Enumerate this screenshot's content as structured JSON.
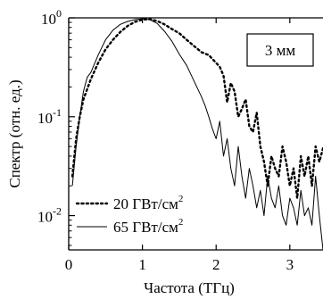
{
  "chart_data": {
    "type": "line",
    "xlabel": "Частота (ТГц)",
    "ylabel": "Спектр (отн. ед.)",
    "xlim": [
      0,
      3.45
    ],
    "ylim": [
      0.0045,
      1.0
    ],
    "yscale": "log",
    "x_ticks": [
      0,
      1,
      2,
      3
    ],
    "y_ticks": [
      {
        "value": 1,
        "base": "10",
        "exp": "0"
      },
      {
        "value": 0.1,
        "base": "10",
        "exp": "-1"
      },
      {
        "value": 0.01,
        "base": "10",
        "exp": "-2"
      }
    ],
    "annotation": "3 мм",
    "legend": {
      "position": "bottom-left"
    },
    "series": [
      {
        "name": "20 ГВт/см",
        "name_sup": "2",
        "style": "dotted",
        "color": "#000000",
        "x": [
          0.05,
          0.1,
          0.15,
          0.2,
          0.3,
          0.4,
          0.5,
          0.6,
          0.7,
          0.8,
          0.9,
          1.0,
          1.1,
          1.2,
          1.3,
          1.4,
          1.5,
          1.6,
          1.7,
          1.8,
          1.9,
          2.0,
          2.05,
          2.1,
          2.15,
          2.2,
          2.25,
          2.3,
          2.35,
          2.4,
          2.45,
          2.5,
          2.55,
          2.6,
          2.65,
          2.7,
          2.75,
          2.8,
          2.85,
          2.9,
          2.95,
          3.0,
          3.05,
          3.1,
          3.15,
          3.2,
          3.25,
          3.3,
          3.35,
          3.4,
          3.45
        ],
        "y": [
          0.025,
          0.06,
          0.1,
          0.15,
          0.24,
          0.35,
          0.48,
          0.6,
          0.72,
          0.83,
          0.91,
          0.96,
          0.97,
          0.93,
          0.86,
          0.77,
          0.7,
          0.6,
          0.52,
          0.45,
          0.42,
          0.35,
          0.32,
          0.26,
          0.14,
          0.22,
          0.18,
          0.1,
          0.12,
          0.15,
          0.08,
          0.07,
          0.11,
          0.05,
          0.035,
          0.02,
          0.04,
          0.03,
          0.025,
          0.05,
          0.035,
          0.02,
          0.03,
          0.015,
          0.04,
          0.025,
          0.04,
          0.02,
          0.05,
          0.035,
          0.048
        ]
      },
      {
        "name": "65 ГВт/см",
        "name_sup": "2",
        "style": "solid",
        "color": "#000000",
        "x": [
          0.05,
          0.1,
          0.15,
          0.2,
          0.25,
          0.3,
          0.4,
          0.5,
          0.6,
          0.7,
          0.8,
          0.9,
          1.0,
          1.1,
          1.2,
          1.3,
          1.4,
          1.5,
          1.6,
          1.7,
          1.8,
          1.85,
          1.9,
          1.95,
          2.0,
          2.05,
          2.1,
          2.15,
          2.2,
          2.25,
          2.3,
          2.35,
          2.4,
          2.45,
          2.5,
          2.55,
          2.6,
          2.65,
          2.7,
          2.75,
          2.8,
          2.85,
          2.9,
          2.95,
          3.0,
          3.05,
          3.1,
          3.15,
          3.2,
          3.25,
          3.3,
          3.35,
          3.4,
          3.45
        ],
        "y": [
          0.02,
          0.05,
          0.1,
          0.18,
          0.25,
          0.28,
          0.42,
          0.6,
          0.75,
          0.86,
          0.92,
          0.96,
          0.98,
          0.96,
          0.88,
          0.73,
          0.58,
          0.43,
          0.33,
          0.23,
          0.16,
          0.13,
          0.1,
          0.075,
          0.06,
          0.09,
          0.04,
          0.06,
          0.03,
          0.02,
          0.05,
          0.025,
          0.015,
          0.03,
          0.02,
          0.012,
          0.018,
          0.01,
          0.025,
          0.015,
          0.012,
          0.02,
          0.01,
          0.008,
          0.015,
          0.012,
          0.008,
          0.018,
          0.01,
          0.012,
          0.008,
          0.025,
          0.01,
          0.0045
        ]
      }
    ]
  }
}
